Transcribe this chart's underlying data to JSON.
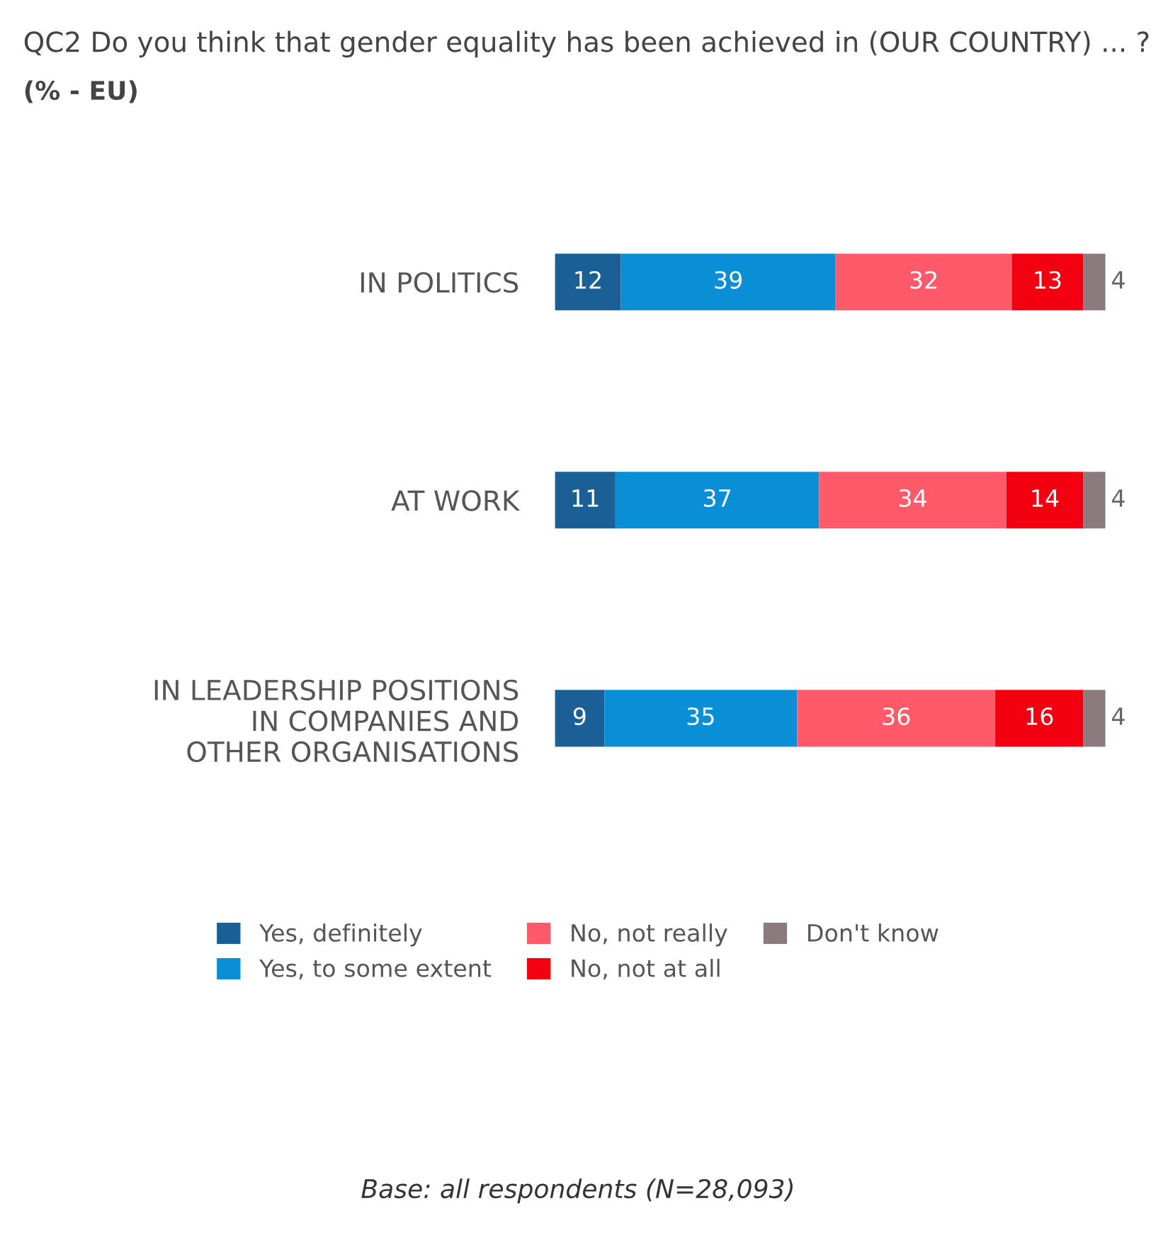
{
  "chart_data": {
    "type": "bar",
    "title": "QC2 Do you think that gender equality has been achieved in (OUR COUNTRY) ... ?",
    "subtitle": "(% - EU)",
    "categories": [
      "IN POLITICS",
      "AT WORK",
      "IN LEADERSHIP POSITIONS\nIN COMPANIES AND\nOTHER ORGANISATIONS"
    ],
    "series": [
      {
        "name": "Yes, definitely",
        "color": "#1a5f96",
        "values": [
          12,
          11,
          9
        ]
      },
      {
        "name": "Yes, to some extent",
        "color": "#0a8fd6",
        "values": [
          39,
          37,
          35
        ]
      },
      {
        "name": "No, not really",
        "color": "#ff5a6a",
        "values": [
          32,
          34,
          36
        ]
      },
      {
        "name": "No, not at all",
        "color": "#f2000f",
        "values": [
          13,
          14,
          16
        ]
      },
      {
        "name": "Don't know",
        "color": "#8b7b7f",
        "values": [
          4,
          4,
          4
        ]
      }
    ],
    "stacked": true,
    "orientation": "horizontal",
    "data_labels": true,
    "legend": "bottom",
    "annotations": [
      "Base: all respondents (N=28,093)"
    ]
  }
}
